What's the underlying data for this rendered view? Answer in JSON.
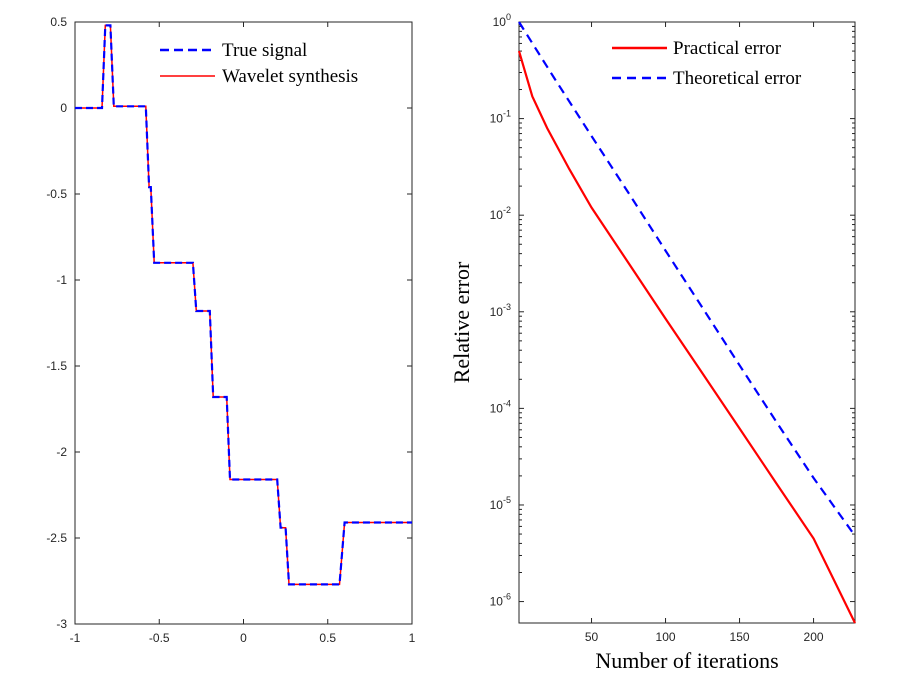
{
  "chart_data": [
    {
      "type": "line",
      "title": "",
      "xlabel": "",
      "ylabel": "",
      "xlim": [
        -1,
        1
      ],
      "ylim": [
        -3,
        0.5
      ],
      "x_ticks": [
        -1,
        -0.5,
        0,
        0.5,
        1
      ],
      "x_tick_labels": [
        "-1",
        "-0.5",
        "0",
        "0.5",
        "1"
      ],
      "y_ticks": [
        0.5,
        0,
        -0.5,
        -1,
        -1.5,
        -2,
        -2.5,
        -3
      ],
      "y_tick_labels": [
        "0.5",
        "0",
        "-0.5",
        "-1",
        "-1.5",
        "-2",
        "-2.5",
        "-3"
      ],
      "legend_position": "top-right",
      "series": [
        {
          "name": "True signal",
          "color": "#0000ff",
          "style": "dashed",
          "x": [
            -1,
            -0.84,
            -0.82,
            -0.79,
            -0.77,
            -0.58,
            -0.56,
            -0.55,
            -0.53,
            -0.3,
            -0.28,
            -0.26,
            -0.24,
            -0.2,
            -0.18,
            -0.1,
            -0.08,
            0.2,
            0.22,
            0.25,
            0.27,
            0.57,
            0.6,
            1
          ],
          "y": [
            0,
            0,
            0.48,
            0.48,
            0.01,
            0.01,
            -0.46,
            -0.46,
            -0.9,
            -0.9,
            -1.18,
            -1.18,
            -1.18,
            -1.18,
            -1.68,
            -1.68,
            -2.16,
            -2.16,
            -2.44,
            -2.44,
            -2.77,
            -2.77,
            -2.41,
            -2.41
          ]
        },
        {
          "name": "Wavelet synthesis",
          "color": "#ff0000",
          "style": "solid",
          "x": [
            -1,
            -0.84,
            -0.82,
            -0.79,
            -0.77,
            -0.58,
            -0.56,
            -0.55,
            -0.53,
            -0.3,
            -0.28,
            -0.26,
            -0.24,
            -0.2,
            -0.18,
            -0.1,
            -0.08,
            0.2,
            0.22,
            0.25,
            0.27,
            0.57,
            0.6,
            1
          ],
          "y": [
            0,
            0,
            0.48,
            0.48,
            0.01,
            0.01,
            -0.46,
            -0.46,
            -0.9,
            -0.9,
            -1.18,
            -1.18,
            -1.18,
            -1.18,
            -1.68,
            -1.68,
            -2.16,
            -2.16,
            -2.44,
            -2.44,
            -2.77,
            -2.77,
            -2.41,
            -2.41
          ]
        }
      ]
    },
    {
      "type": "line",
      "title": "",
      "xlabel": "Number of iterations",
      "ylabel": "Relative error",
      "y_scale": "log",
      "xlim": [
        1,
        228
      ],
      "ylim": [
        6e-07,
        1
      ],
      "x_ticks": [
        50,
        100,
        150,
        200
      ],
      "x_tick_labels": [
        "50",
        "100",
        "150",
        "200"
      ],
      "y_ticks": [
        1,
        0.1,
        0.01,
        0.001,
        0.0001,
        1e-05,
        1e-06
      ],
      "y_tick_labels": [
        "10^0",
        "10^-1",
        "10^-2",
        "10^-3",
        "10^-4",
        "10^-5",
        "10^-6"
      ],
      "legend_position": "top-right",
      "series": [
        {
          "name": "Practical error",
          "color": "#ff0000",
          "style": "solid",
          "x": [
            1,
            10,
            20,
            35,
            50,
            75,
            100,
            125,
            150,
            175,
            200,
            228
          ],
          "y": [
            0.5,
            0.17,
            0.08,
            0.03,
            0.012,
            0.0032,
            0.00085,
            0.00023,
            6.2e-05,
            1.66e-05,
            4.5e-06,
            6e-07
          ]
        },
        {
          "name": "Theoretical error",
          "color": "#0000ff",
          "style": "dashed",
          "x": [
            1,
            25,
            50,
            75,
            100,
            125,
            150,
            175,
            200,
            228
          ],
          "y": [
            1,
            0.26,
            0.066,
            0.017,
            0.0043,
            0.0011,
            0.00028,
            7.2e-05,
            1.9e-05,
            4.8e-06
          ]
        }
      ]
    }
  ]
}
